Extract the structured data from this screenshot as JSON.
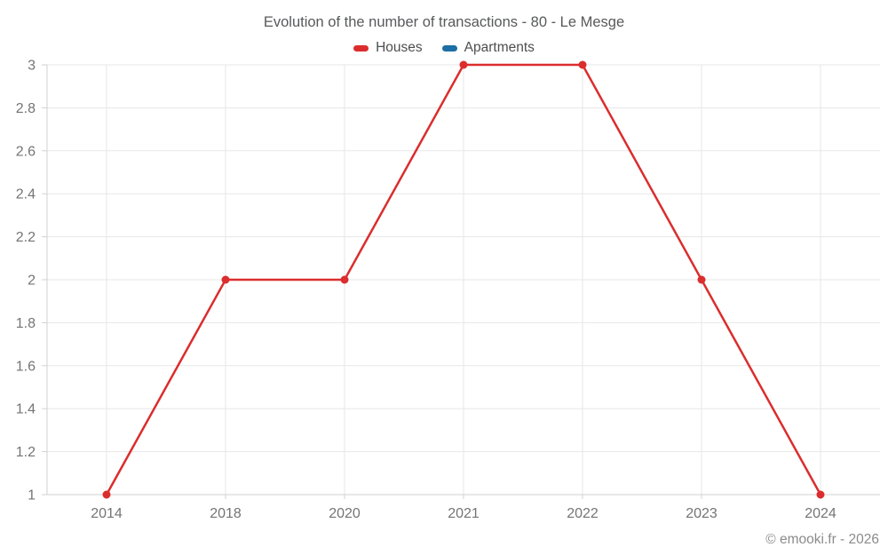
{
  "header": {
    "title": "Evolution of the number of transactions - 80 - Le Mesge"
  },
  "legend": {
    "items": [
      {
        "label": "Houses",
        "color": "#db2d2d"
      },
      {
        "label": "Apartments",
        "color": "#1c6ea4"
      }
    ]
  },
  "footer": {
    "credit": "© emooki.fr - 2026"
  },
  "chart_data": {
    "type": "line",
    "title": "Evolution of the number of transactions - 80 - Le Mesge",
    "categories": [
      "2014",
      "2018",
      "2020",
      "2021",
      "2022",
      "2023",
      "2024"
    ],
    "series": [
      {
        "name": "Houses",
        "color": "#db2d2d",
        "values": [
          1,
          2,
          2,
          3,
          3,
          2,
          1
        ]
      },
      {
        "name": "Apartments",
        "color": "#1c6ea4",
        "values": []
      }
    ],
    "xlabel": "",
    "ylabel": "",
    "ylim": [
      1,
      3
    ],
    "y_ticks": [
      1,
      1.2,
      1.4,
      1.6,
      1.8,
      2,
      2.2,
      2.4,
      2.6,
      2.8,
      3
    ],
    "grid": true,
    "legend_position": "top",
    "colors": {
      "gridline": "#e7e7e7",
      "axis_line": "#d2d2d2",
      "tick_label": "#747474"
    }
  }
}
